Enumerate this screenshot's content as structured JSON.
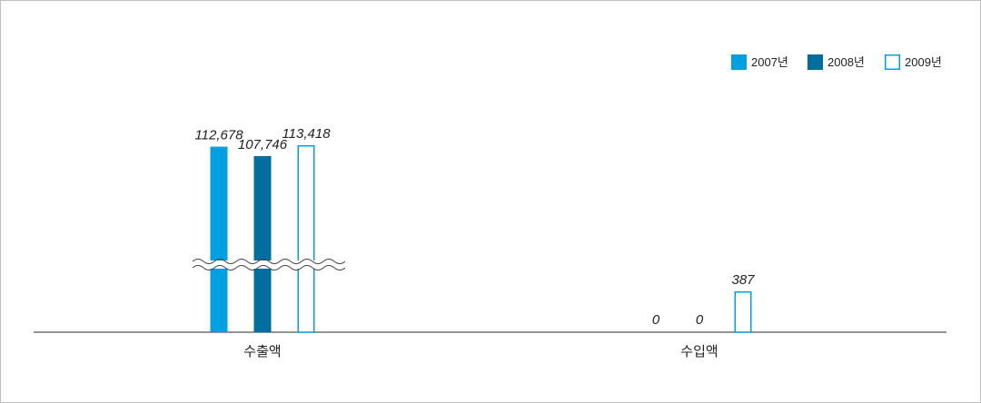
{
  "chart_data": {
    "type": "bar",
    "categories": [
      "수출액",
      "수입액"
    ],
    "series": [
      {
        "name": "2007년",
        "values": [
          112678,
          0
        ]
      },
      {
        "name": "2008년",
        "values": [
          107746,
          0
        ]
      },
      {
        "name": "2009년",
        "values": [
          113418,
          387
        ]
      }
    ],
    "value_labels": [
      [
        "112,678",
        "0"
      ],
      [
        "107,746",
        "0"
      ],
      [
        "113,418",
        "387"
      ]
    ],
    "axis_break": true,
    "legend_position": "top-right",
    "grid": false,
    "colors": {
      "2007년": "#00A0E3",
      "2008년": "#006E9E",
      "2009년": "#FFFFFF",
      "outline": "#00A0E3"
    }
  }
}
